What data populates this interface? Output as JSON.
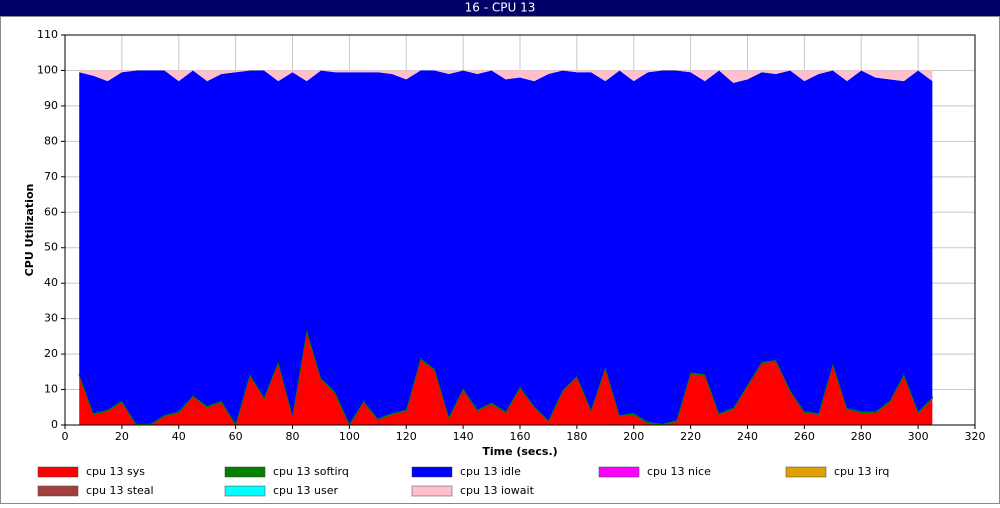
{
  "chart_data": {
    "type": "stacked-area",
    "title": "16 - CPU 13",
    "x_label": "Time (secs.)",
    "y_label": "CPU Utilization",
    "x": [
      5,
      10,
      15,
      20,
      25,
      30,
      35,
      40,
      45,
      50,
      55,
      60,
      65,
      70,
      75,
      80,
      85,
      90,
      95,
      100,
      105,
      110,
      115,
      120,
      125,
      130,
      135,
      140,
      145,
      150,
      155,
      160,
      165,
      170,
      175,
      180,
      185,
      190,
      195,
      200,
      205,
      210,
      215,
      220,
      225,
      230,
      235,
      240,
      245,
      250,
      255,
      260,
      265,
      270,
      275,
      280,
      285,
      290,
      295,
      300,
      305
    ],
    "xlim": [
      0,
      320
    ],
    "xticks": [
      0,
      20,
      40,
      60,
      80,
      100,
      120,
      140,
      160,
      180,
      200,
      220,
      240,
      260,
      280,
      300,
      320
    ],
    "ylim": [
      0,
      110
    ],
    "yticks": [
      0,
      10,
      20,
      30,
      40,
      50,
      60,
      70,
      80,
      90,
      100,
      110
    ],
    "grid": true,
    "series": [
      {
        "name": "cpu 13 sys",
        "color": "#ff0000",
        "values": [
          14,
          3,
          4,
          6.5,
          0,
          0,
          2.5,
          3.5,
          8,
          5,
          6.5,
          0,
          14,
          7.5,
          17.5,
          2.5,
          26.5,
          13,
          9,
          0,
          6.5,
          1.5,
          3,
          4,
          18.5,
          15.5,
          2,
          10,
          4,
          6,
          3.5,
          10.5,
          5,
          1,
          9.5,
          13.5,
          4,
          16,
          2.5,
          3,
          0.5,
          0,
          1,
          14.5,
          14,
          3,
          4.5,
          11,
          17.5,
          18,
          9.5,
          3.5,
          3,
          17,
          4.5,
          3.5,
          3.5,
          6.5,
          14,
          3.5,
          7.5
        ]
      },
      {
        "name": "cpu 13 softirq",
        "color": "#008000",
        "values": [
          0.3,
          0.3,
          0.3,
          0.3,
          0.3,
          0.3,
          0.3,
          0.3,
          0.3,
          0.3,
          0.3,
          0.3,
          0.3,
          0.3,
          0.3,
          0.3,
          0.3,
          0.3,
          0.3,
          0.3,
          0.3,
          0.3,
          0.3,
          0.3,
          0.3,
          0.3,
          0.3,
          0.3,
          0.3,
          0.3,
          0.3,
          0.3,
          0.3,
          0.3,
          0.3,
          0.3,
          0.3,
          0.3,
          0.3,
          0.3,
          0.3,
          0.3,
          0.3,
          0.3,
          0.3,
          0.3,
          0.3,
          0.3,
          0.3,
          0.3,
          0.3,
          0.3,
          0.3,
          0.3,
          0.3,
          0.3,
          0.3,
          0.3,
          0.3,
          0.3,
          0.3
        ]
      },
      {
        "name": "cpu 13 idle",
        "color": "#0000ff",
        "values": [
          85.2,
          95.2,
          92.7,
          92.7,
          99.7,
          99.7,
          97.2,
          93.2,
          91.7,
          91.7,
          92.2,
          99.2,
          85.7,
          92.2,
          79.2,
          96.7,
          70.2,
          86.7,
          90.2,
          99.2,
          92.7,
          97.7,
          95.7,
          93.2,
          81.2,
          84.2,
          96.7,
          89.7,
          94.7,
          93.7,
          93.7,
          87.2,
          91.7,
          97.7,
          90.2,
          85.7,
          95.2,
          80.7,
          97.2,
          93.7,
          98.7,
          99.7,
          98.7,
          84.7,
          82.7,
          96.7,
          91.7,
          86.2,
          81.7,
          80.7,
          90.2,
          93.2,
          95.7,
          82.7,
          92.2,
          96.2,
          94.2,
          90.7,
          82.7,
          96.2,
          89.2
        ]
      },
      {
        "name": "cpu 13 nice",
        "color": "#ff00ff",
        "values": [
          0,
          0,
          0,
          0,
          0,
          0,
          0,
          0,
          0,
          0,
          0,
          0,
          0,
          0,
          0,
          0,
          0,
          0,
          0,
          0,
          0,
          0,
          0,
          0,
          0,
          0,
          0,
          0,
          0,
          0,
          0,
          0,
          0,
          0,
          0,
          0,
          0,
          0,
          0,
          0,
          0,
          0,
          0,
          0,
          0,
          0,
          0,
          0,
          0,
          0,
          0,
          0,
          0,
          0,
          0,
          0,
          0,
          0,
          0,
          0,
          0
        ]
      },
      {
        "name": "cpu 13 irq",
        "color": "#e0a000",
        "values": [
          0,
          0,
          0,
          0,
          0,
          0,
          0,
          0,
          0,
          0,
          0,
          0,
          0,
          0,
          0,
          0,
          0,
          0,
          0,
          0,
          0,
          0,
          0,
          0,
          0,
          0,
          0,
          0,
          0,
          0,
          0,
          0,
          0,
          0,
          0,
          0,
          0,
          0,
          0,
          0,
          0,
          0,
          0,
          0,
          0,
          0,
          0,
          0,
          0,
          0,
          0,
          0,
          0,
          0,
          0,
          0,
          0,
          0,
          0,
          0,
          0
        ]
      },
      {
        "name": "cpu 13 steal",
        "color": "#a04040",
        "values": [
          0,
          0,
          0,
          0,
          0,
          0,
          0,
          0,
          0,
          0,
          0,
          0,
          0,
          0,
          0,
          0,
          0,
          0,
          0,
          0,
          0,
          0,
          0,
          0,
          0,
          0,
          0,
          0,
          0,
          0,
          0,
          0,
          0,
          0,
          0,
          0,
          0,
          0,
          0,
          0,
          0,
          0,
          0,
          0,
          0,
          0,
          0,
          0,
          0,
          0,
          0,
          0,
          0,
          0,
          0,
          0,
          0,
          0,
          0,
          0,
          0
        ]
      },
      {
        "name": "cpu 13 user",
        "color": "#00ffff",
        "values": [
          0,
          0,
          0,
          0,
          0,
          0,
          0,
          0,
          0,
          0,
          0,
          0,
          0,
          0,
          0,
          0,
          0,
          0,
          0,
          0,
          0,
          0,
          0,
          0,
          0,
          0,
          0,
          0,
          0,
          0,
          0,
          0,
          0,
          0,
          0,
          0,
          0,
          0,
          0,
          0,
          0,
          0,
          0,
          0,
          0,
          0,
          0,
          0,
          0,
          0,
          0,
          0,
          0,
          0,
          0,
          0,
          0,
          0,
          0,
          0,
          0
        ]
      },
      {
        "name": "cpu 13 iowait",
        "color": "#ffc0cb",
        "values": [
          0.5,
          1.5,
          3,
          0.5,
          0,
          0,
          0,
          3,
          0,
          3,
          1,
          0.5,
          0,
          0,
          3,
          0.5,
          3,
          0,
          0.5,
          0.5,
          0.5,
          0.5,
          1,
          2.5,
          0,
          0,
          1,
          0,
          1,
          0,
          2.5,
          2,
          3,
          1,
          0,
          0.5,
          0.5,
          3,
          0,
          3,
          0.5,
          0,
          0,
          0.5,
          3,
          0,
          3.5,
          2.5,
          0.5,
          1,
          0,
          3,
          1,
          0,
          3,
          0,
          2,
          2.5,
          3,
          0,
          3
        ]
      }
    ]
  }
}
